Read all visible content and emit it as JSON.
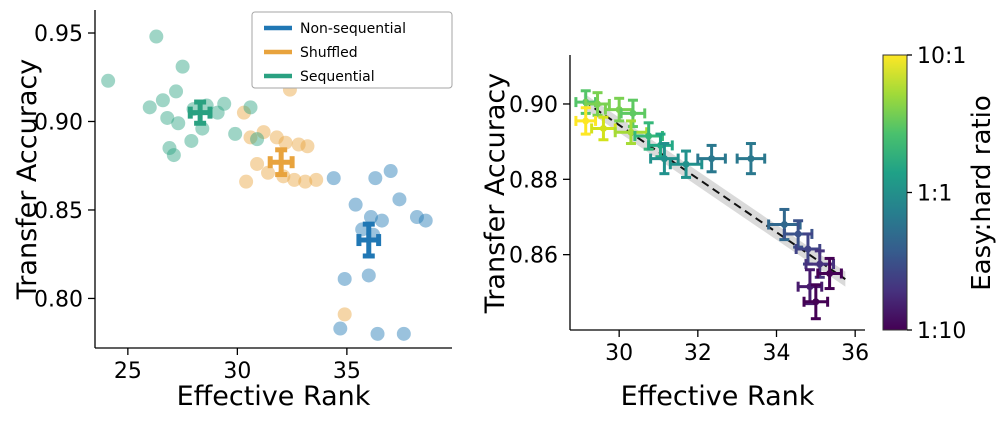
{
  "chart_data": [
    {
      "panel": "left",
      "type": "scatter",
      "title": "",
      "xlabel": "Effective Rank",
      "ylabel": "Transfer Accuracy",
      "xlim": [
        23.5,
        39.8
      ],
      "ylim": [
        0.772,
        0.963
      ],
      "xticks": [
        25,
        30,
        35
      ],
      "yticks": [
        0.8,
        0.85,
        0.9,
        0.95
      ],
      "grid": false,
      "legend_position": "upper right",
      "series": [
        {
          "name": "Non-sequential",
          "color": "#2077b4",
          "points": [
            [
              34.4,
              0.868
            ],
            [
              36.3,
              0.868
            ],
            [
              37.0,
              0.872
            ],
            [
              35.4,
              0.853
            ],
            [
              36.1,
              0.846
            ],
            [
              36.6,
              0.844
            ],
            [
              37.4,
              0.856
            ],
            [
              38.2,
              0.846
            ],
            [
              38.6,
              0.844
            ],
            [
              35.7,
              0.839
            ],
            [
              36.2,
              0.836
            ],
            [
              34.9,
              0.811
            ],
            [
              36.0,
              0.813
            ],
            [
              34.7,
              0.783
            ],
            [
              36.4,
              0.78
            ],
            [
              37.6,
              0.78
            ]
          ],
          "mean": {
            "x": 36.0,
            "y": 0.833,
            "xerr": 0.45,
            "yerr": 0.009
          }
        },
        {
          "name": "Shuffled",
          "color": "#e8a33d",
          "points": [
            [
              30.3,
              0.905
            ],
            [
              32.4,
              0.918
            ],
            [
              30.6,
              0.891
            ],
            [
              31.2,
              0.894
            ],
            [
              31.8,
              0.891
            ],
            [
              32.2,
              0.888
            ],
            [
              32.8,
              0.887
            ],
            [
              33.2,
              0.886
            ],
            [
              30.9,
              0.876
            ],
            [
              31.4,
              0.871
            ],
            [
              32.1,
              0.869
            ],
            [
              32.6,
              0.867
            ],
            [
              33.1,
              0.866
            ],
            [
              33.6,
              0.867
            ],
            [
              30.4,
              0.866
            ],
            [
              34.9,
              0.791
            ]
          ],
          "mean": {
            "x": 32.0,
            "y": 0.877,
            "xerr": 0.5,
            "yerr": 0.007
          }
        },
        {
          "name": "Sequential",
          "color": "#2aa181",
          "points": [
            [
              24.1,
              0.923
            ],
            [
              26.3,
              0.948
            ],
            [
              26.0,
              0.908
            ],
            [
              26.6,
              0.912
            ],
            [
              27.2,
              0.917
            ],
            [
              27.5,
              0.931
            ],
            [
              26.8,
              0.902
            ],
            [
              27.3,
              0.899
            ],
            [
              28.0,
              0.907
            ],
            [
              28.6,
              0.909
            ],
            [
              29.1,
              0.905
            ],
            [
              29.4,
              0.91
            ],
            [
              26.9,
              0.885
            ],
            [
              27.1,
              0.881
            ],
            [
              27.9,
              0.889
            ],
            [
              28.4,
              0.896
            ],
            [
              29.9,
              0.893
            ],
            [
              30.6,
              0.908
            ],
            [
              30.9,
              0.89
            ]
          ],
          "mean": {
            "x": 28.3,
            "y": 0.905,
            "xerr": 0.45,
            "yerr": 0.006
          }
        }
      ]
    },
    {
      "panel": "right",
      "type": "scatter",
      "title": "",
      "xlabel": "Effective Rank",
      "ylabel": "Transfer Accuracy",
      "xlim": [
        28.75,
        36.25
      ],
      "ylim": [
        0.84,
        0.913
      ],
      "xticks": [
        30,
        32,
        34,
        36
      ],
      "yticks": [
        0.86,
        0.88,
        0.9
      ],
      "grid": false,
      "fit": {
        "x1": 29.1,
        "y1": 0.9008,
        "x2": 35.75,
        "y2": 0.8535,
        "line_color": "#111111",
        "band_color": "#bbbbbb"
      },
      "band_halfwidth": 0.002,
      "points": [
        {
          "x": 29.15,
          "y": 0.9005,
          "xe": 0.25,
          "ye": 0.003,
          "c": "#54c568"
        },
        {
          "x": 29.45,
          "y": 0.9,
          "xe": 0.3,
          "ye": 0.003,
          "c": "#7ad151"
        },
        {
          "x": 29.15,
          "y": 0.8955,
          "xe": 0.25,
          "ye": 0.0035,
          "c": "#fde725"
        },
        {
          "x": 29.6,
          "y": 0.8935,
          "xe": 0.3,
          "ye": 0.003,
          "c": "#d2e21b"
        },
        {
          "x": 30.0,
          "y": 0.8985,
          "xe": 0.35,
          "ye": 0.003,
          "c": "#7ad151"
        },
        {
          "x": 30.35,
          "y": 0.8975,
          "xe": 0.3,
          "ye": 0.0035,
          "c": "#5ec962"
        },
        {
          "x": 30.3,
          "y": 0.8925,
          "xe": 0.4,
          "ye": 0.003,
          "c": "#a5db36"
        },
        {
          "x": 30.75,
          "y": 0.8915,
          "xe": 0.35,
          "ye": 0.0035,
          "c": "#35b779"
        },
        {
          "x": 31.05,
          "y": 0.889,
          "xe": 0.3,
          "ye": 0.003,
          "c": "#22a884"
        },
        {
          "x": 31.15,
          "y": 0.8855,
          "xe": 0.35,
          "ye": 0.004,
          "c": "#21918c"
        },
        {
          "x": 31.7,
          "y": 0.884,
          "xe": 0.4,
          "ye": 0.0035,
          "c": "#21918c"
        },
        {
          "x": 32.35,
          "y": 0.8855,
          "xe": 0.35,
          "ye": 0.0035,
          "c": "#2a788e"
        },
        {
          "x": 33.35,
          "y": 0.8855,
          "xe": 0.35,
          "ye": 0.004,
          "c": "#2a788e"
        },
        {
          "x": 34.2,
          "y": 0.868,
          "xe": 0.4,
          "ye": 0.004,
          "c": "#31688e"
        },
        {
          "x": 34.55,
          "y": 0.8655,
          "xe": 0.35,
          "ye": 0.0035,
          "c": "#3b528b"
        },
        {
          "x": 34.8,
          "y": 0.8615,
          "xe": 0.3,
          "ye": 0.004,
          "c": "#414487"
        },
        {
          "x": 35.1,
          "y": 0.8575,
          "xe": 0.35,
          "ye": 0.0035,
          "c": "#46327e"
        },
        {
          "x": 35.35,
          "y": 0.855,
          "xe": 0.3,
          "ye": 0.004,
          "c": "#440154"
        },
        {
          "x": 34.85,
          "y": 0.8515,
          "xe": 0.3,
          "ye": 0.0045,
          "c": "#481b6d"
        },
        {
          "x": 35.0,
          "y": 0.8475,
          "xe": 0.3,
          "ye": 0.0045,
          "c": "#440154"
        }
      ],
      "colorbar": {
        "label": "Easy:hard ratio",
        "ticks": [
          {
            "label": "10:1",
            "pos": 0
          },
          {
            "label": "1:1",
            "pos": 0.5
          },
          {
            "label": "1:10",
            "pos": 1
          }
        ],
        "gradient": [
          "#fde725",
          "#a0da39",
          "#4ac16d",
          "#1fa187",
          "#277f8e",
          "#365c8d",
          "#46327e",
          "#440154"
        ]
      }
    }
  ]
}
